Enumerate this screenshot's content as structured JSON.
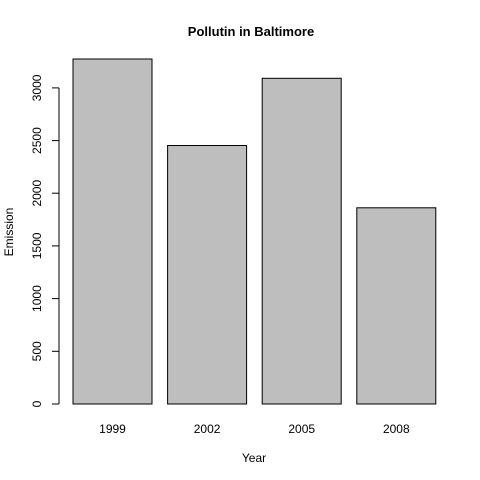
{
  "chart_data": {
    "type": "bar",
    "title": "Pollutin in Baltimore",
    "xlabel": "Year",
    "ylabel": "Emission",
    "categories": [
      "1999",
      "2002",
      "2005",
      "2008"
    ],
    "values": [
      3274,
      2453,
      3091,
      1862
    ],
    "ylim": [
      0,
      3274
    ],
    "yticks": [
      "0",
      "500",
      "1000",
      "1500",
      "2000",
      "2500",
      "3000"
    ],
    "ytick_values": [
      0,
      500,
      1000,
      1500,
      2000,
      2500,
      3000
    ],
    "grid": false,
    "legend": "none",
    "bar_color": "#bebebe",
    "bar_edge_color": "#000000"
  }
}
